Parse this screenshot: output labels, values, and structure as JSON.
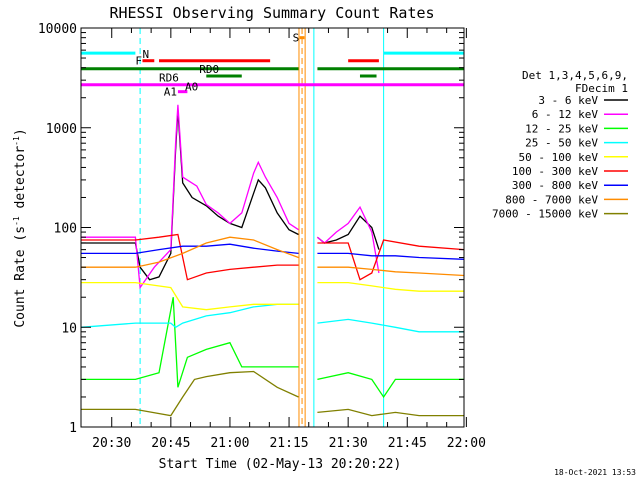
{
  "chart_data": {
    "type": "line",
    "title": "RHESSI Observing Summary Count Rates",
    "xlabel": "Start Time (02-May-13 20:20:22)",
    "ylabel": "Count Rate (s",
    "ylabel_sup": "-1",
    "ylabel_mid": " detector",
    "ylabel_sup2": "-1",
    "ylabel_end": ")",
    "yscale": "log",
    "ylim": [
      1,
      10000
    ],
    "xlim_minutes": [
      20.37,
      21.99
    ],
    "xlim_clock": [
      "20:20:22",
      "22:00:00"
    ],
    "x_ticks": [
      "20:30",
      "20:45",
      "21:00",
      "21:15",
      "21:30",
      "21:45",
      "22:00"
    ],
    "y_ticks": [
      "1",
      "10",
      "100",
      "1000",
      "10000"
    ],
    "legend_header": [
      "Det 1,3,4,5,6,9,",
      "FDecim 1"
    ],
    "series": [
      {
        "name": "3 - 6 keV",
        "color": "#000000",
        "points": [
          [
            20.37,
            70
          ],
          [
            20.6,
            70
          ],
          [
            20.62,
            40
          ],
          [
            20.66,
            30
          ],
          [
            20.7,
            32
          ],
          [
            20.75,
            55
          ],
          [
            20.77,
            600
          ],
          [
            20.78,
            1500
          ],
          [
            20.8,
            280
          ],
          [
            20.84,
            200
          ],
          [
            20.9,
            165
          ],
          [
            20.95,
            130
          ],
          [
            21.0,
            110
          ],
          [
            21.05,
            100
          ],
          [
            21.1,
            220
          ],
          [
            21.12,
            300
          ],
          [
            21.15,
            250
          ],
          [
            21.2,
            140
          ],
          [
            21.25,
            95
          ],
          [
            21.29,
            85
          ],
          [
            21.3,
            null
          ],
          [
            21.37,
            80
          ],
          [
            21.4,
            70
          ],
          [
            21.45,
            75
          ],
          [
            21.5,
            85
          ],
          [
            21.55,
            130
          ],
          [
            21.6,
            100
          ],
          [
            21.63,
            60
          ],
          [
            21.65,
            null
          ]
        ]
      },
      {
        "name": "6 - 12 keV",
        "color": "#ff00ff",
        "points": [
          [
            20.37,
            80
          ],
          [
            20.6,
            80
          ],
          [
            20.62,
            25
          ],
          [
            20.68,
            40
          ],
          [
            20.75,
            60
          ],
          [
            20.77,
            700
          ],
          [
            20.78,
            1700
          ],
          [
            20.8,
            320
          ],
          [
            20.86,
            260
          ],
          [
            20.9,
            170
          ],
          [
            20.95,
            140
          ],
          [
            21.0,
            110
          ],
          [
            21.05,
            140
          ],
          [
            21.1,
            350
          ],
          [
            21.12,
            450
          ],
          [
            21.15,
            320
          ],
          [
            21.2,
            200
          ],
          [
            21.25,
            110
          ],
          [
            21.29,
            95
          ],
          [
            21.3,
            null
          ],
          [
            21.37,
            80
          ],
          [
            21.4,
            70
          ],
          [
            21.45,
            90
          ],
          [
            21.5,
            110
          ],
          [
            21.55,
            160
          ],
          [
            21.6,
            90
          ],
          [
            21.63,
            35
          ],
          [
            21.65,
            null
          ]
        ]
      },
      {
        "name": "12 - 25 keV",
        "color": "#00ff00",
        "points": [
          [
            20.37,
            3
          ],
          [
            20.6,
            3
          ],
          [
            20.7,
            3.5
          ],
          [
            20.76,
            20
          ],
          [
            20.78,
            2.5
          ],
          [
            20.82,
            5
          ],
          [
            20.9,
            6
          ],
          [
            21.0,
            7
          ],
          [
            21.05,
            4
          ],
          [
            21.2,
            4
          ],
          [
            21.29,
            4
          ],
          [
            21.3,
            null
          ],
          [
            21.37,
            3
          ],
          [
            21.5,
            3.5
          ],
          [
            21.6,
            3
          ],
          [
            21.65,
            2
          ],
          [
            21.7,
            3
          ],
          [
            21.99,
            3
          ]
        ]
      },
      {
        "name": "25 - 50 keV",
        "color": "#00ffff",
        "points": [
          [
            20.37,
            10
          ],
          [
            20.6,
            11
          ],
          [
            20.75,
            11
          ],
          [
            20.77,
            10
          ],
          [
            20.8,
            11
          ],
          [
            20.9,
            13
          ],
          [
            21.0,
            14
          ],
          [
            21.1,
            16
          ],
          [
            21.2,
            17
          ],
          [
            21.29,
            17
          ],
          [
            21.3,
            null
          ],
          [
            21.37,
            11
          ],
          [
            21.5,
            12
          ],
          [
            21.6,
            11
          ],
          [
            21.7,
            10
          ],
          [
            21.8,
            9
          ],
          [
            21.99,
            9
          ]
        ]
      },
      {
        "name": "50 - 100 keV",
        "color": "#ffff00",
        "points": [
          [
            20.37,
            28
          ],
          [
            20.6,
            28
          ],
          [
            20.75,
            25
          ],
          [
            20.8,
            16
          ],
          [
            20.9,
            15
          ],
          [
            21.0,
            16
          ],
          [
            21.1,
            17
          ],
          [
            21.2,
            17
          ],
          [
            21.29,
            17
          ],
          [
            21.3,
            null
          ],
          [
            21.37,
            28
          ],
          [
            21.5,
            28
          ],
          [
            21.6,
            26
          ],
          [
            21.7,
            24
          ],
          [
            21.8,
            23
          ],
          [
            21.99,
            23
          ]
        ]
      },
      {
        "name": "100 - 300 keV",
        "color": "#ff0000",
        "points": [
          [
            20.37,
            75
          ],
          [
            20.6,
            75
          ],
          [
            20.7,
            80
          ],
          [
            20.78,
            85
          ],
          [
            20.82,
            30
          ],
          [
            20.9,
            35
          ],
          [
            21.0,
            38
          ],
          [
            21.1,
            40
          ],
          [
            21.2,
            42
          ],
          [
            21.29,
            42
          ],
          [
            21.3,
            null
          ],
          [
            21.37,
            70
          ],
          [
            21.5,
            70
          ],
          [
            21.55,
            30
          ],
          [
            21.6,
            35
          ],
          [
            21.65,
            75
          ],
          [
            21.8,
            65
          ],
          [
            21.99,
            60
          ]
        ]
      },
      {
        "name": "300 - 800 keV",
        "color": "#0000ff",
        "points": [
          [
            20.37,
            55
          ],
          [
            20.6,
            55
          ],
          [
            20.7,
            60
          ],
          [
            20.8,
            65
          ],
          [
            20.9,
            65
          ],
          [
            21.0,
            68
          ],
          [
            21.1,
            62
          ],
          [
            21.2,
            58
          ],
          [
            21.29,
            55
          ],
          [
            21.3,
            null
          ],
          [
            21.37,
            55
          ],
          [
            21.5,
            55
          ],
          [
            21.6,
            52
          ],
          [
            21.7,
            52
          ],
          [
            21.8,
            50
          ],
          [
            21.99,
            48
          ]
        ]
      },
      {
        "name": "800 - 7000 keV",
        "color": "#ff8c00",
        "points": [
          [
            20.37,
            40
          ],
          [
            20.6,
            40
          ],
          [
            20.7,
            45
          ],
          [
            20.8,
            55
          ],
          [
            20.9,
            70
          ],
          [
            21.0,
            80
          ],
          [
            21.1,
            75
          ],
          [
            21.2,
            60
          ],
          [
            21.29,
            50
          ],
          [
            21.3,
            null
          ],
          [
            21.37,
            40
          ],
          [
            21.5,
            40
          ],
          [
            21.6,
            38
          ],
          [
            21.7,
            36
          ],
          [
            21.8,
            35
          ],
          [
            21.99,
            33
          ]
        ]
      },
      {
        "name": "7000 - 15000 keV",
        "color": "#808000",
        "points": [
          [
            20.37,
            1.5
          ],
          [
            20.6,
            1.5
          ],
          [
            20.75,
            1.3
          ],
          [
            20.8,
            2
          ],
          [
            20.85,
            3
          ],
          [
            20.9,
            3.2
          ],
          [
            21.0,
            3.5
          ],
          [
            21.1,
            3.6
          ],
          [
            21.2,
            2.5
          ],
          [
            21.29,
            2
          ],
          [
            21.3,
            null
          ],
          [
            21.37,
            1.4
          ],
          [
            21.5,
            1.5
          ],
          [
            21.6,
            1.3
          ],
          [
            21.7,
            1.4
          ],
          [
            21.8,
            1.3
          ],
          [
            21.99,
            1.3
          ]
        ]
      }
    ],
    "vertical_markers": [
      {
        "x": 20.37,
        "color": "#00ffff",
        "style": "solid"
      },
      {
        "x": 20.62,
        "color": "#00ffff",
        "style": "dashed"
      },
      {
        "x": 21.292,
        "color": "#ff8c00",
        "style": "solid"
      },
      {
        "x": 21.318,
        "color": "#ff8c00",
        "style": "solid"
      },
      {
        "x": 21.305,
        "color": "#ff8c00",
        "style": "dashed"
      },
      {
        "x": 21.355,
        "color": "#00ffff",
        "style": "solid"
      },
      {
        "x": 21.65,
        "color": "#00ffff",
        "style": "solid"
      },
      {
        "x": 21.99,
        "color": "#00ffff",
        "style": "dashed"
      }
    ],
    "flag_bars": [
      {
        "label": "N",
        "color": "#00ffff",
        "y": 5600,
        "segments": [
          [
            20.37,
            20.6
          ],
          [
            21.65,
            21.99
          ]
        ]
      },
      {
        "label": "F",
        "color": "#ff0000",
        "y": 4700,
        "segments": [
          [
            20.63,
            20.68
          ],
          [
            20.7,
            21.17
          ],
          [
            21.5,
            21.63
          ]
        ]
      },
      {
        "label": "S",
        "color": "#ff8c00",
        "y": 8000,
        "segments": [
          [
            21.295,
            21.315
          ]
        ]
      },
      {
        "label": "RD0",
        "color": "#008000",
        "y": 3900,
        "segments": [
          [
            20.37,
            21.29
          ],
          [
            21.37,
            21.99
          ]
        ]
      },
      {
        "label": "RD6",
        "color": "#008000",
        "y": 3300,
        "segments": [
          [
            20.9,
            21.05
          ],
          [
            21.55,
            21.62
          ]
        ]
      },
      {
        "label": "A1",
        "color": "#ff00ff",
        "y": 2700,
        "segments": [
          [
            20.37,
            21.99
          ]
        ]
      },
      {
        "label": "A0",
        "color": "#ff00ff",
        "y": 2300,
        "segments": [
          [
            20.78,
            20.82
          ]
        ]
      }
    ],
    "flag_labels": [
      {
        "label": "N",
        "x": 20.63,
        "y": 5500
      },
      {
        "label": "F",
        "x": 20.6,
        "y": 4700
      },
      {
        "label": "S",
        "x": 21.265,
        "y": 8000
      },
      {
        "label": "RD0",
        "x": 20.87,
        "y": 3900
      },
      {
        "label": "RD6",
        "x": 20.7,
        "y": 3200
      },
      {
        "label": "A1",
        "x": 20.72,
        "y": 2300
      },
      {
        "label": "A0",
        "x": 20.81,
        "y": 2600
      }
    ]
  },
  "footer_timestamp": "18-Oct-2021 13:53"
}
